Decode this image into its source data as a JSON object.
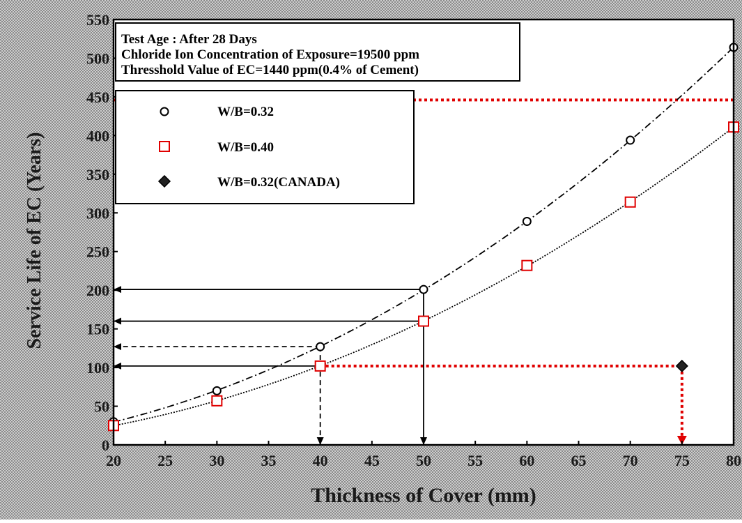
{
  "chart_data": {
    "type": "scatter",
    "xlabel": "Thickness of Cover (mm)",
    "ylabel": "Service Life of EC (Years)",
    "xlim": [
      20,
      80
    ],
    "ylim": [
      0,
      550
    ],
    "xticks": [
      "20",
      "25",
      "30",
      "35",
      "40",
      "45",
      "50",
      "55",
      "60",
      "65",
      "70",
      "75",
      "80"
    ],
    "yticks": [
      "0",
      "50",
      "100",
      "150",
      "200",
      "250",
      "300",
      "350",
      "400",
      "450",
      "500",
      "550"
    ],
    "info_lines": [
      "Test Age : After 28 Days",
      "Chloride Ion Concentration of Exposure=19500 ppm",
      "Thresshold Value of EC=1440 ppm(0.4% of Cement)"
    ],
    "series": [
      {
        "name": "W/B=0.32",
        "marker": "circle",
        "color": "#000000",
        "x": [
          20,
          30,
          40,
          50,
          60,
          70,
          80
        ],
        "y": [
          30,
          70,
          127,
          201,
          289,
          394,
          514
        ],
        "trend_line": "dash-dot"
      },
      {
        "name": "W/B=0.40",
        "marker": "square",
        "color": "#e00000",
        "x": [
          20,
          30,
          40,
          50,
          60,
          70,
          80
        ],
        "y": [
          25,
          57,
          102,
          160,
          232,
          314,
          411
        ],
        "trend_line": "dotted"
      },
      {
        "name": "W/B=0.32(CANADA)",
        "marker": "diamond",
        "color": "#000000",
        "x": [
          75
        ],
        "y": [
          102
        ]
      }
    ],
    "annotations": [
      {
        "style": "dotted-red",
        "from": [
          80,
          446
        ],
        "to": [
          20,
          446
        ],
        "direction": "left"
      },
      {
        "style": "dotted-red",
        "from": [
          40,
          102
        ],
        "to": [
          75,
          102
        ],
        "direction": "none"
      },
      {
        "style": "dotted-red",
        "from": [
          75,
          102
        ],
        "to": [
          75,
          0
        ],
        "direction": "down"
      },
      {
        "style": "solid",
        "from": [
          50,
          201
        ],
        "to": [
          20,
          201
        ],
        "direction": "left"
      },
      {
        "style": "solid",
        "from": [
          50,
          160
        ],
        "to": [
          20,
          160
        ],
        "direction": "left"
      },
      {
        "style": "solid",
        "from": [
          40,
          102
        ],
        "to": [
          20,
          102
        ],
        "direction": "left"
      },
      {
        "style": "dashed",
        "from": [
          40,
          127
        ],
        "to": [
          20,
          127
        ],
        "direction": "left"
      },
      {
        "style": "dashed",
        "from": [
          40,
          127
        ],
        "to": [
          40,
          0
        ],
        "direction": "down"
      },
      {
        "style": "solid",
        "from": [
          50,
          201
        ],
        "to": [
          50,
          0
        ],
        "direction": "down"
      }
    ],
    "colors": {
      "background": "#b8b8b8",
      "plot": "#ffffff",
      "accent": "#e00000"
    },
    "grid": false,
    "legend": "upper-left"
  }
}
